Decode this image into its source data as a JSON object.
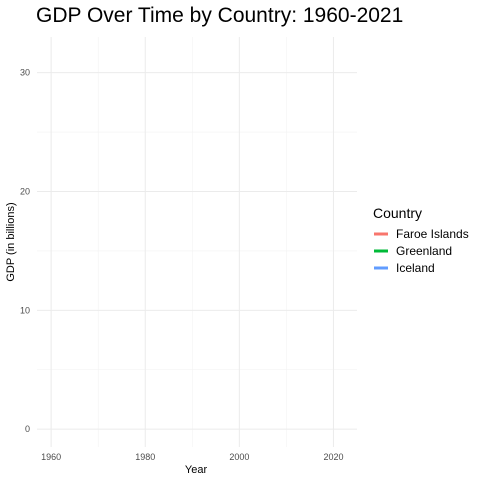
{
  "chart_data": {
    "type": "line",
    "title": "GDP Over Time by Country: 1960-2021",
    "xlabel": "Year",
    "ylabel": "GDP (in billions)",
    "xlim": [
      1957,
      2025
    ],
    "ylim": [
      -1.5,
      33
    ],
    "x_ticks": [
      1960,
      1980,
      2000,
      2020
    ],
    "x_tick_labels": [
      "1960",
      "1980",
      "2000",
      "2020"
    ],
    "x_minor_ticks": [
      1970,
      1990,
      2010
    ],
    "y_ticks": [
      0,
      10,
      20,
      30
    ],
    "y_tick_labels": [
      "0",
      "10",
      "20",
      "30"
    ],
    "y_minor_ticks": [
      5,
      15,
      25
    ],
    "grid": true,
    "legend": {
      "title": "Country",
      "position": "right"
    },
    "series": [
      {
        "name": "Faroe Islands",
        "color": "#F8766D",
        "x": [],
        "y": []
      },
      {
        "name": "Greenland",
        "color": "#00BA38",
        "x": [],
        "y": []
      },
      {
        "name": "Iceland",
        "color": "#619CFF",
        "x": [],
        "y": []
      }
    ]
  }
}
